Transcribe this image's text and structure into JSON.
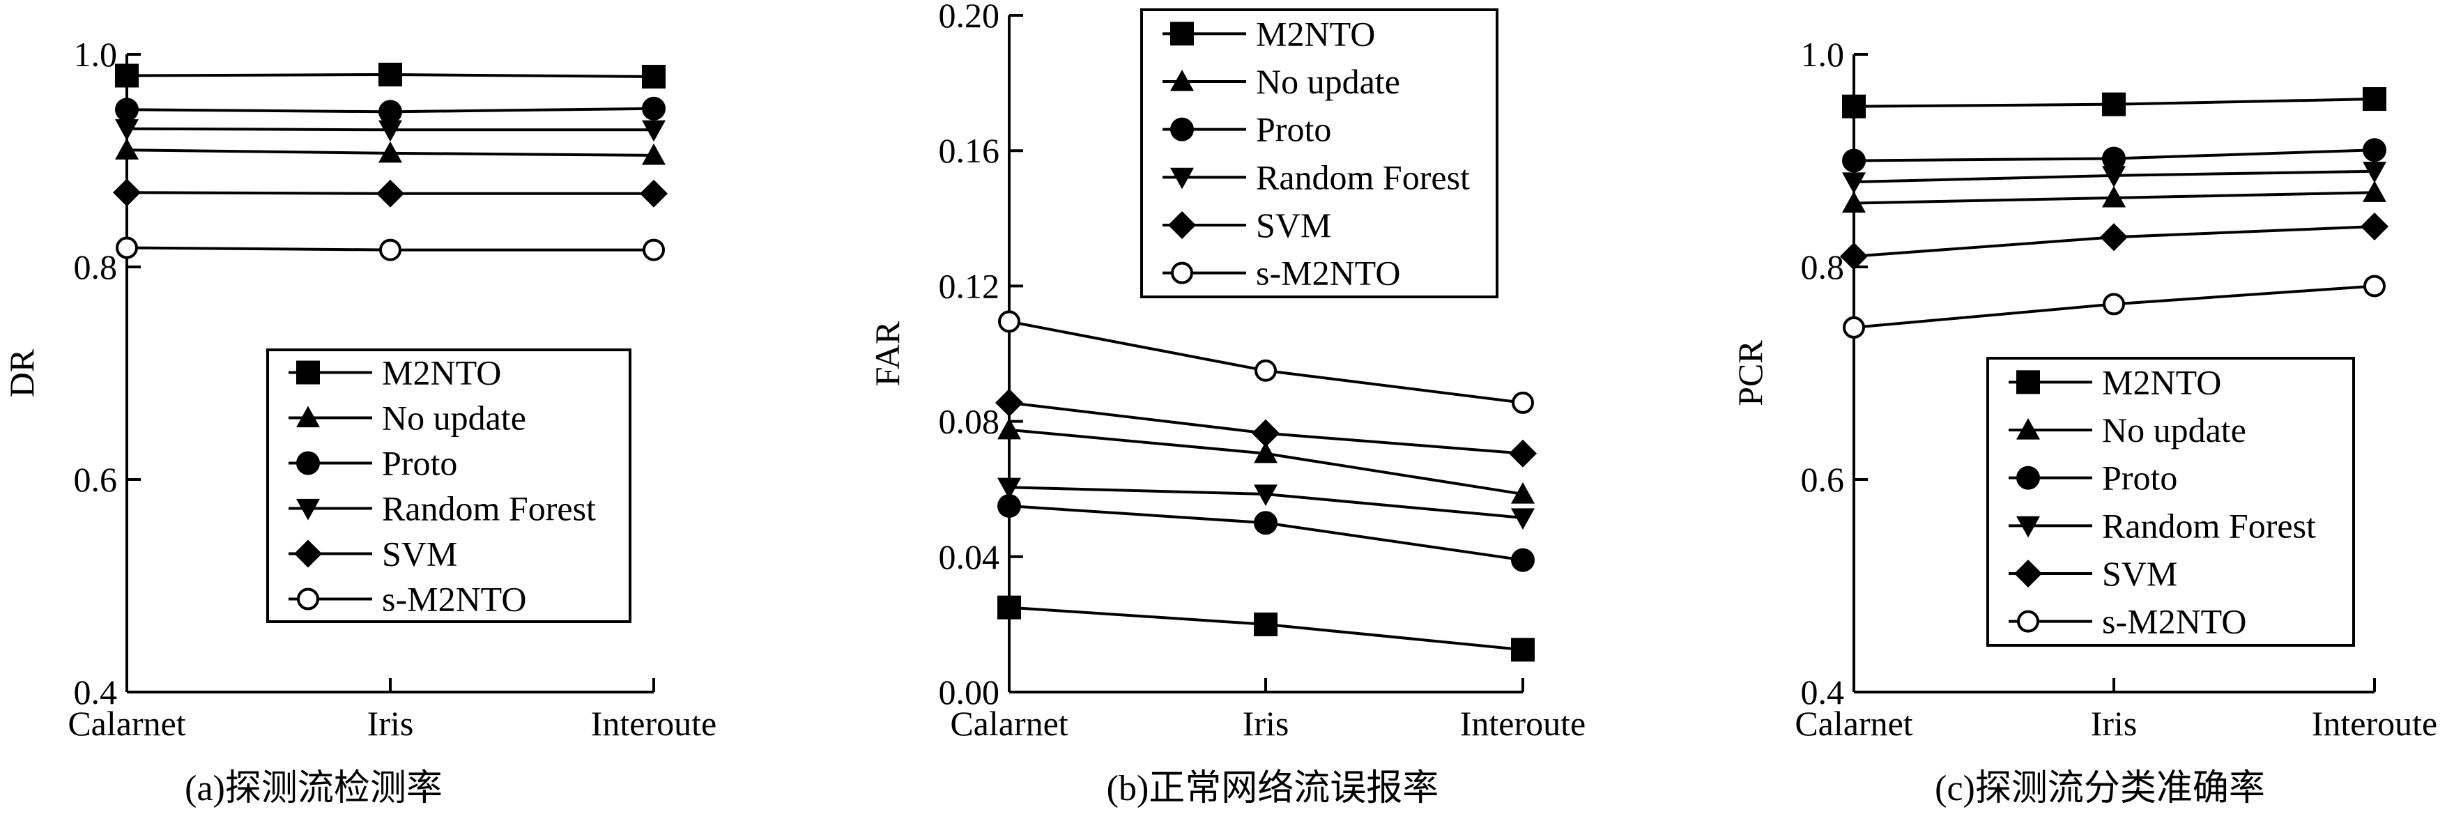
{
  "chart_data": [
    {
      "type": "line",
      "caption": "(a)探测流检测率",
      "categories": [
        "Calarnet",
        "Iris",
        "Interoute"
      ],
      "ylabel": "DR",
      "ylim": [
        0.4,
        1.0
      ],
      "yticks": [
        "0.4",
        "0.6",
        "0.8",
        "1.0"
      ],
      "grid": false,
      "legend_position": "lower-right",
      "series": [
        {
          "name": "M2NTO",
          "marker": "square",
          "values": [
            0.98,
            0.981,
            0.979
          ]
        },
        {
          "name": "No update",
          "marker": "triangle-up",
          "values": [
            0.91,
            0.907,
            0.905
          ]
        },
        {
          "name": "Proto",
          "marker": "circle",
          "values": [
            0.948,
            0.946,
            0.949
          ]
        },
        {
          "name": "Random Forest",
          "marker": "triangle-down",
          "values": [
            0.93,
            0.929,
            0.929
          ]
        },
        {
          "name": "SVM",
          "marker": "diamond",
          "values": [
            0.87,
            0.869,
            0.869
          ]
        },
        {
          "name": "s-M2NTO",
          "marker": "open-circle",
          "values": [
            0.818,
            0.816,
            0.816
          ]
        }
      ]
    },
    {
      "type": "line",
      "caption": "(b)正常网络流误报率",
      "categories": [
        "Calarnet",
        "Iris",
        "Interoute"
      ],
      "ylabel": "FAR",
      "ylim": [
        0.0,
        0.2
      ],
      "yticks": [
        "0.00",
        "0.04",
        "0.08",
        "0.12",
        "0.16",
        "0.20"
      ],
      "grid": false,
      "legend_position": "top-right",
      "series": [
        {
          "name": "M2NTO",
          "marker": "square",
          "values": [
            0.025,
            0.02,
            0.0125
          ]
        },
        {
          "name": "No update",
          "marker": "triangle-up",
          "values": [
            0.0775,
            0.0705,
            0.0585
          ]
        },
        {
          "name": "Proto",
          "marker": "circle",
          "values": [
            0.055,
            0.05,
            0.039
          ]
        },
        {
          "name": "Random Forest",
          "marker": "triangle-down",
          "values": [
            0.0605,
            0.0585,
            0.0515
          ]
        },
        {
          "name": "SVM",
          "marker": "diamond",
          "values": [
            0.0855,
            0.0765,
            0.0705
          ]
        },
        {
          "name": "s-M2NTO",
          "marker": "open-circle",
          "values": [
            0.1095,
            0.095,
            0.0855
          ]
        }
      ]
    },
    {
      "type": "line",
      "caption": "(c)探测流分类准确率",
      "categories": [
        "Calarnet",
        "Iris",
        "Interoute"
      ],
      "ylabel": "PCR",
      "ylim": [
        0.4,
        1.0
      ],
      "yticks": [
        "0.4",
        "0.6",
        "0.8",
        "1.0"
      ],
      "grid": false,
      "legend_position": "lower-right",
      "series": [
        {
          "name": "M2NTO",
          "marker": "square",
          "values": [
            0.951,
            0.953,
            0.958
          ]
        },
        {
          "name": "No update",
          "marker": "triangle-up",
          "values": [
            0.86,
            0.865,
            0.87
          ]
        },
        {
          "name": "Proto",
          "marker": "circle",
          "values": [
            0.9,
            0.902,
            0.91
          ]
        },
        {
          "name": "Random Forest",
          "marker": "triangle-down",
          "values": [
            0.88,
            0.886,
            0.89
          ]
        },
        {
          "name": "SVM",
          "marker": "diamond",
          "values": [
            0.81,
            0.828,
            0.838
          ]
        },
        {
          "name": "s-M2NTO",
          "marker": "open-circle",
          "values": [
            0.743,
            0.765,
            0.782
          ]
        }
      ]
    }
  ]
}
